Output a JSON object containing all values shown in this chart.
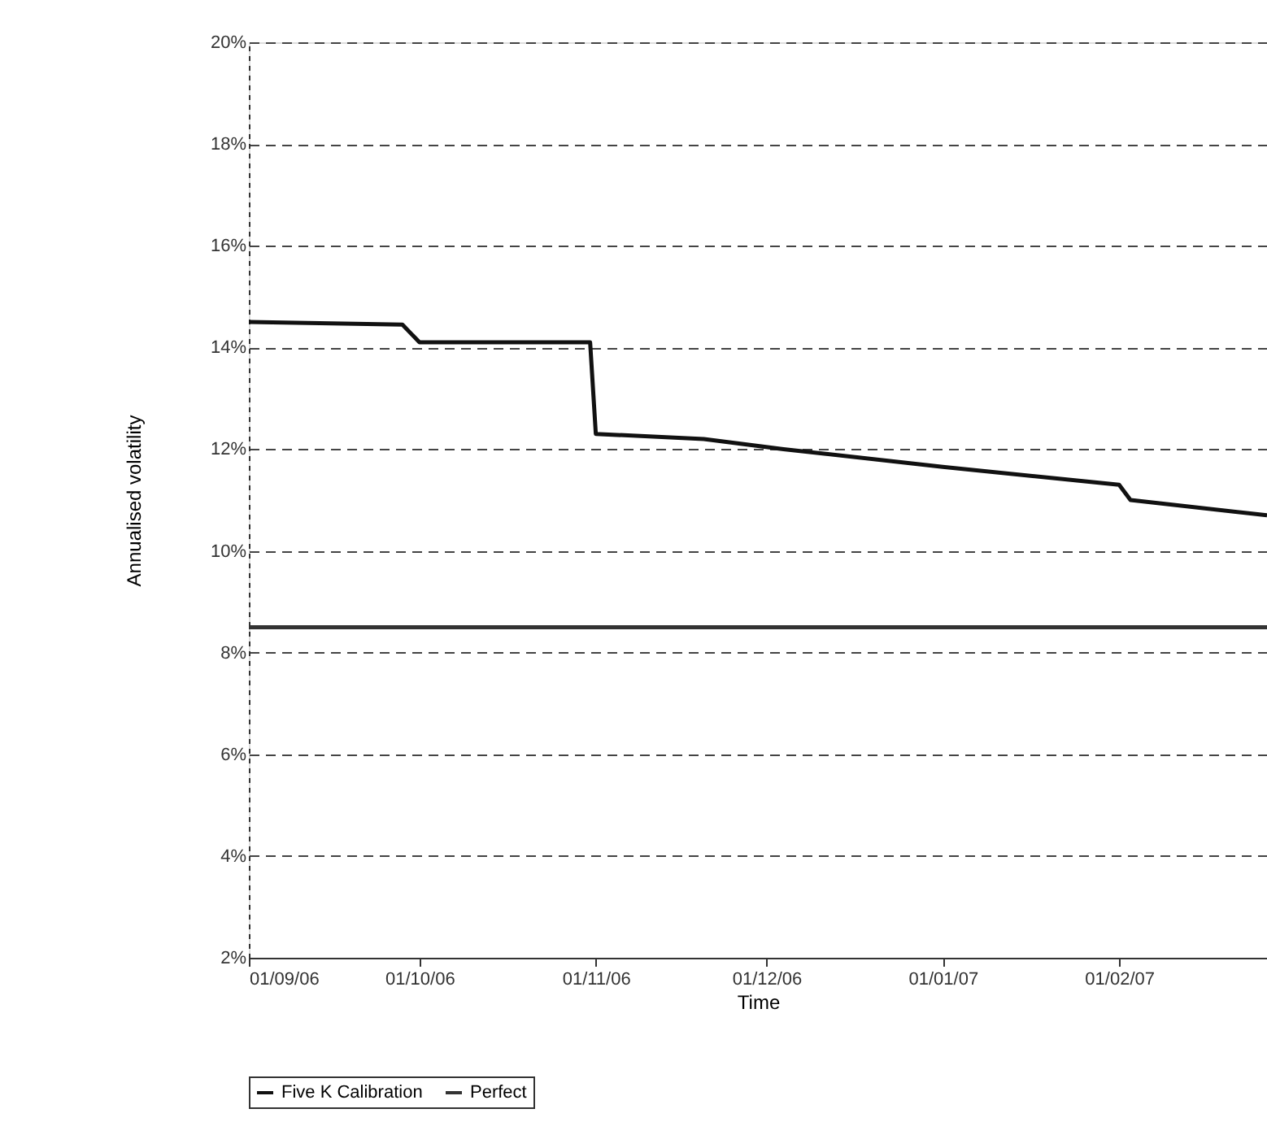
{
  "chart_data": {
    "type": "line",
    "xlabel": "Time",
    "ylabel": "Annualised volatility",
    "xlim": [
      "2006-09-01",
      "2007-02-27"
    ],
    "xticks": [
      {
        "value": "2006-09-01",
        "label": "01/09/06"
      },
      {
        "value": "2006-10-01",
        "label": "01/10/06"
      },
      {
        "value": "2006-11-01",
        "label": "01/11/06"
      },
      {
        "value": "2006-12-01",
        "label": "01/12/06"
      },
      {
        "value": "2007-01-01",
        "label": "01/01/07"
      },
      {
        "value": "2007-02-01",
        "label": "01/02/07"
      }
    ],
    "ylim": [
      2,
      20
    ],
    "yticks": [
      {
        "value": 2,
        "label": "2%"
      },
      {
        "value": 4,
        "label": "4%"
      },
      {
        "value": 6,
        "label": "6%"
      },
      {
        "value": 8,
        "label": "8%"
      },
      {
        "value": 10,
        "label": "10%"
      },
      {
        "value": 12,
        "label": "12%"
      },
      {
        "value": 14,
        "label": "14%"
      },
      {
        "value": 16,
        "label": "16%"
      },
      {
        "value": 18,
        "label": "18%"
      },
      {
        "value": 20,
        "label": "20%"
      }
    ],
    "grid": "y",
    "legend": "bottom",
    "marker": "none",
    "line_style": "solid",
    "series": [
      {
        "name": "Five K Calibration",
        "color": "#111111",
        "x": [
          "2006-09-01",
          "2006-09-28",
          "2006-10-01",
          "2006-10-31",
          "2006-11-01",
          "2006-11-20",
          "2006-12-04",
          "2007-01-01",
          "2007-02-01",
          "2007-02-03",
          "2007-02-27"
        ],
        "values": [
          14.5,
          14.45,
          14.1,
          14.1,
          12.3,
          12.2,
          12.0,
          11.65,
          11.3,
          11.0,
          10.7
        ]
      },
      {
        "name": "Perfect",
        "color": "#333333",
        "x": [
          "2006-09-01",
          "2007-02-27"
        ],
        "values": [
          8.5,
          8.5
        ]
      }
    ]
  }
}
